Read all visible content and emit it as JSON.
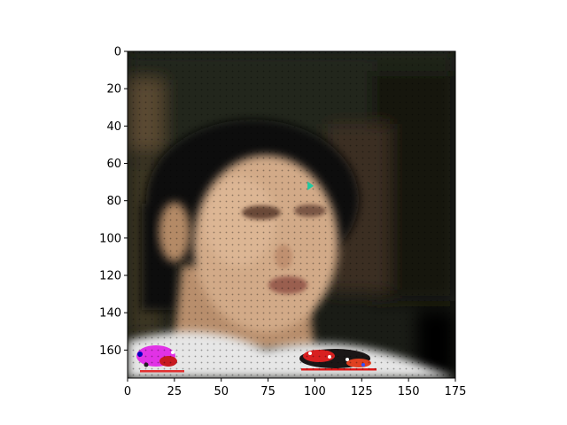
{
  "chart_data": {
    "type": "heatmap",
    "title": "",
    "xlabel": "",
    "ylabel": "",
    "xlim": [
      0,
      175
    ],
    "ylim": [
      175,
      0
    ],
    "x_ticks": [
      0,
      25,
      50,
      75,
      100,
      125,
      150,
      175
    ],
    "y_ticks": [
      0,
      20,
      40,
      60,
      80,
      100,
      120,
      140,
      160
    ],
    "grid": false,
    "legend": "none",
    "image_content": "blurred photo of a person's face with dark hair, white collar at bottom with colorful noisy patches; dark background",
    "annotations": [
      {
        "type": "marker",
        "x": 97,
        "y": 72,
        "color": "#20c9a0"
      }
    ],
    "colors": {
      "background_dark": "#1a1c16",
      "skin": "#d2aa88",
      "hair": "#0c0c0a",
      "collar": "#e6e6e6",
      "patch_magenta": "#e01ee6",
      "patch_red": "#e02020"
    }
  }
}
